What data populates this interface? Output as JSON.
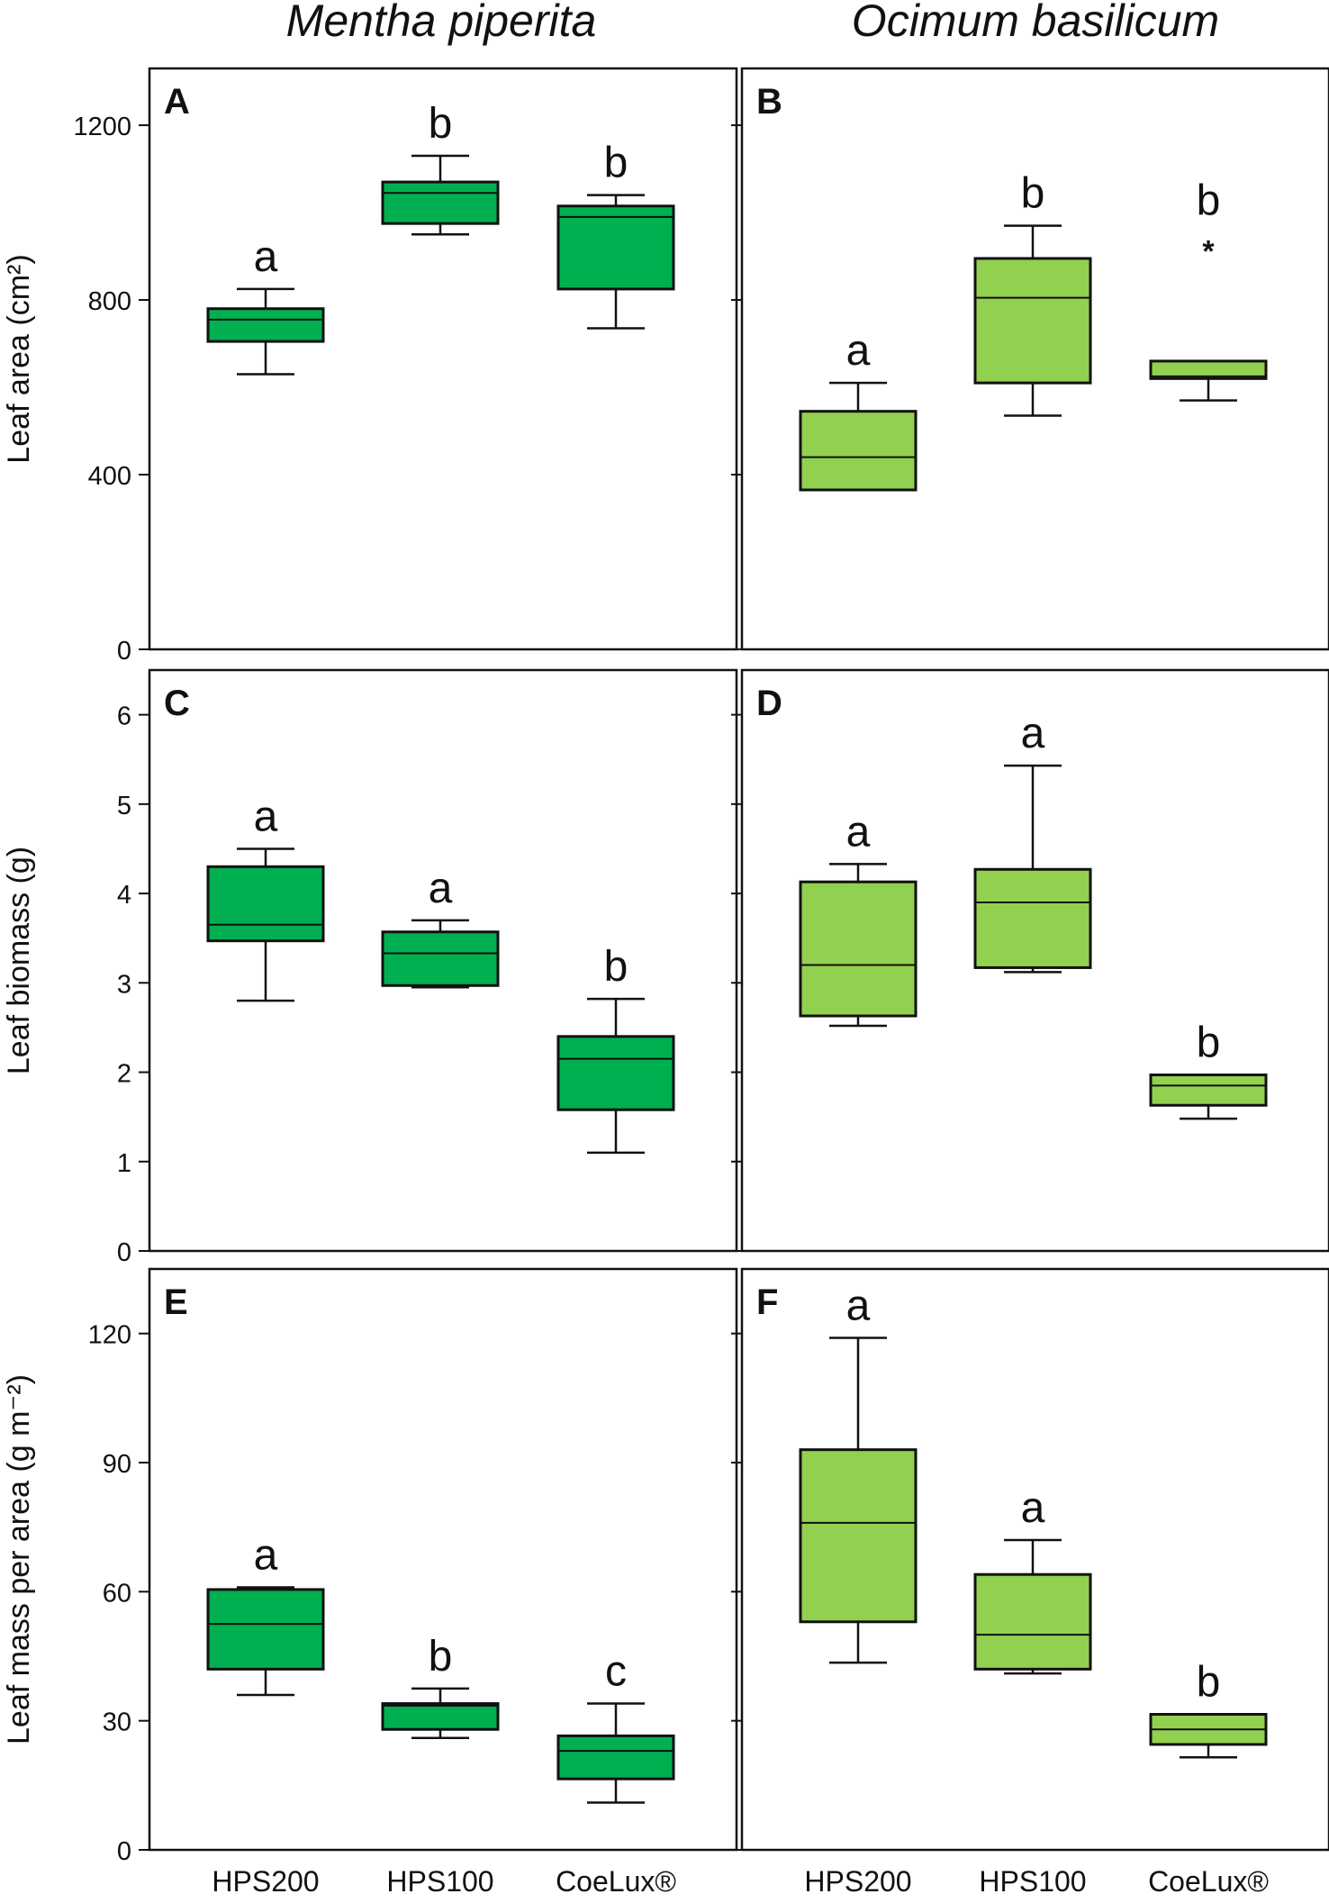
{
  "figure": {
    "column_titles": [
      "Mentha piperita",
      "Ocimum basilicum"
    ],
    "colors": {
      "mentha_fill": "#00B050",
      "ocimum_fill": "#92D050",
      "stroke": "#111111"
    }
  },
  "chart_data": [
    {
      "type": "box",
      "panel": "A",
      "species": "Mentha piperita",
      "ylabel": "Leaf area (cm²)",
      "ylim": [
        0,
        1330
      ],
      "yticks": [
        0,
        400,
        800,
        1200
      ],
      "categories": [
        "HPS200",
        "HPS100",
        "CoeLux®"
      ],
      "boxes": [
        {
          "whisker_low": 630,
          "q1": 705,
          "median": 755,
          "q3": 780,
          "whisker_high": 825,
          "letter": "a"
        },
        {
          "whisker_low": 950,
          "q1": 975,
          "median": 1045,
          "q3": 1070,
          "whisker_high": 1130,
          "letter": "b"
        },
        {
          "whisker_low": 735,
          "q1": 825,
          "median": 990,
          "q3": 1015,
          "whisker_high": 1040,
          "letter": "b"
        }
      ]
    },
    {
      "type": "box",
      "panel": "B",
      "species": "Ocimum basilicum",
      "ylabel": "Leaf area (cm²)",
      "ylim": [
        0,
        1330
      ],
      "yticks": [
        0,
        400,
        800,
        1200
      ],
      "categories": [
        "HPS200",
        "HPS100",
        "CoeLux®"
      ],
      "boxes": [
        {
          "whisker_low": 365,
          "q1": 365,
          "median": 440,
          "q3": 545,
          "whisker_high": 610,
          "letter": "a"
        },
        {
          "whisker_low": 535,
          "q1": 610,
          "median": 805,
          "q3": 895,
          "whisker_high": 970,
          "letter": "b"
        },
        {
          "whisker_low": 570,
          "q1": 620,
          "median": 625,
          "q3": 660,
          "whisker_high": 660,
          "letter": "b",
          "outlier": 925,
          "outlier_symbol": "*"
        }
      ]
    },
    {
      "type": "box",
      "panel": "C",
      "species": "Mentha piperita",
      "ylabel": "Leaf biomass (g)",
      "ylim": [
        0,
        6.5
      ],
      "yticks": [
        0,
        1,
        2,
        3,
        4,
        5,
        6
      ],
      "categories": [
        "HPS200",
        "HPS100",
        "CoeLux®"
      ],
      "boxes": [
        {
          "whisker_low": 2.8,
          "q1": 3.47,
          "median": 3.65,
          "q3": 4.3,
          "whisker_high": 4.5,
          "letter": "a"
        },
        {
          "whisker_low": 2.95,
          "q1": 2.97,
          "median": 3.33,
          "q3": 3.57,
          "whisker_high": 3.7,
          "letter": "a"
        },
        {
          "whisker_low": 1.1,
          "q1": 1.58,
          "median": 2.15,
          "q3": 2.4,
          "whisker_high": 2.82,
          "letter": "b"
        }
      ]
    },
    {
      "type": "box",
      "panel": "D",
      "species": "Ocimum basilicum",
      "ylabel": "Leaf biomass (g)",
      "ylim": [
        0,
        6.5
      ],
      "yticks": [
        0,
        1,
        2,
        3,
        4,
        5,
        6
      ],
      "categories": [
        "HPS200",
        "HPS100",
        "CoeLux®"
      ],
      "boxes": [
        {
          "whisker_low": 2.52,
          "q1": 2.63,
          "median": 3.2,
          "q3": 4.13,
          "whisker_high": 4.33,
          "letter": "a"
        },
        {
          "whisker_low": 3.12,
          "q1": 3.17,
          "median": 3.9,
          "q3": 4.27,
          "whisker_high": 5.43,
          "letter": "a"
        },
        {
          "whisker_low": 1.48,
          "q1": 1.63,
          "median": 1.85,
          "q3": 1.97,
          "whisker_high": 1.97,
          "letter": "b"
        }
      ]
    },
    {
      "type": "box",
      "panel": "E",
      "species": "Mentha piperita",
      "ylabel": "Leaf mass per area (g m⁻²)",
      "ylim": [
        0,
        135
      ],
      "yticks": [
        0,
        30,
        60,
        90,
        120
      ],
      "categories": [
        "HPS200",
        "HPS100",
        "CoeLux®"
      ],
      "boxes": [
        {
          "whisker_low": 36,
          "q1": 42,
          "median": 52.5,
          "q3": 60.5,
          "whisker_high": 61,
          "letter": "a"
        },
        {
          "whisker_low": 26,
          "q1": 28,
          "median": 33.5,
          "q3": 34,
          "whisker_high": 37.5,
          "letter": "b"
        },
        {
          "whisker_low": 11,
          "q1": 16.5,
          "median": 23,
          "q3": 26.5,
          "whisker_high": 34,
          "letter": "c"
        }
      ]
    },
    {
      "type": "box",
      "panel": "F",
      "species": "Ocimum basilicum",
      "ylabel": "Leaf mass per area (g m⁻²)",
      "ylim": [
        0,
        135
      ],
      "yticks": [
        0,
        30,
        60,
        90,
        120
      ],
      "categories": [
        "HPS200",
        "HPS100",
        "CoeLux®"
      ],
      "boxes": [
        {
          "whisker_low": 43.5,
          "q1": 53,
          "median": 76,
          "q3": 93,
          "whisker_high": 119,
          "letter": "a"
        },
        {
          "whisker_low": 41,
          "q1": 42,
          "median": 50,
          "q3": 64,
          "whisker_high": 72,
          "letter": "a"
        },
        {
          "whisker_low": 21.5,
          "q1": 24.5,
          "median": 28,
          "q3": 31.5,
          "whisker_high": 31.5,
          "letter": "b"
        }
      ]
    }
  ]
}
